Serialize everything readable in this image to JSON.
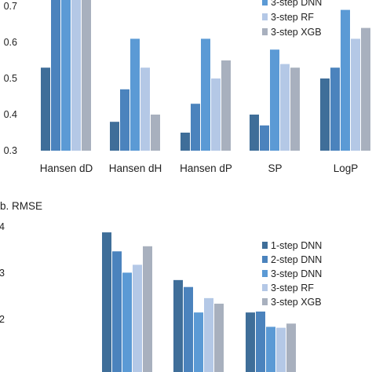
{
  "chart_data": [
    {
      "type": "bar",
      "title": "",
      "xlabel": "",
      "ylabel": "",
      "ylim": [
        0.3,
        0.75
      ],
      "yticks": [
        "0.7",
        "0.6",
        "0.5",
        "0.4",
        "0.3"
      ],
      "ytick_values": [
        0.7,
        0.6,
        0.5,
        0.4,
        0.3
      ],
      "categories": [
        "Hansen dD",
        "Hansen dH",
        "Hansen dP",
        "SP",
        "LogP"
      ],
      "grid": false,
      "legend_placement": "top-right",
      "series": [
        {
          "name": "1-step DNN",
          "color": "#3f6e99",
          "values": [
            0.53,
            0.38,
            0.35,
            0.4,
            0.5
          ]
        },
        {
          "name": "2-step DNN",
          "color": "#4b83bd",
          "values": [
            0.75,
            0.47,
            0.43,
            0.37,
            0.53
          ]
        },
        {
          "name": "3-step DNN",
          "color": "#5b9ad5",
          "values": [
            0.75,
            0.61,
            0.61,
            0.58,
            0.69
          ]
        },
        {
          "name": "3-step RF",
          "color": "#b4c8e6",
          "values": [
            0.75,
            0.53,
            0.5,
            0.54,
            0.61
          ]
        },
        {
          "name": "3-step XGB",
          "color": "#a8b0be",
          "values": [
            0.75,
            0.4,
            0.55,
            0.53,
            0.64
          ]
        }
      ],
      "legend_visible": [
        "3-step DNN",
        "3-step RF",
        "3-step XGB"
      ]
    },
    {
      "type": "bar",
      "title": "b. RMSE",
      "xlabel": "",
      "ylabel": "",
      "ylim": [
        1.0,
        4.2
      ],
      "yticks": [
        "4",
        "3",
        "2"
      ],
      "ytick_values": [
        4,
        3,
        2
      ],
      "categories": [
        "",
        "",
        ""
      ],
      "grid": false,
      "legend_placement": "right",
      "series": [
        {
          "name": "1-step DNN",
          "color": "#3f6e99",
          "values": [
            3.88,
            2.85,
            2.15
          ]
        },
        {
          "name": "2-step DNN",
          "color": "#4b83bd",
          "values": [
            3.47,
            2.7,
            2.17
          ]
        },
        {
          "name": "3-step DNN",
          "color": "#5b9ad5",
          "values": [
            3.01,
            2.15,
            1.84
          ]
        },
        {
          "name": "3-step RF",
          "color": "#b4c8e6",
          "values": [
            3.18,
            2.46,
            1.82
          ]
        },
        {
          "name": "3-step XGB",
          "color": "#a8b0be",
          "values": [
            3.58,
            2.34,
            1.91
          ]
        }
      ],
      "legend_visible": [
        "1-step DNN",
        "2-step DNN",
        "3-step DNN",
        "3-step RF",
        "3-step XGB"
      ]
    }
  ]
}
